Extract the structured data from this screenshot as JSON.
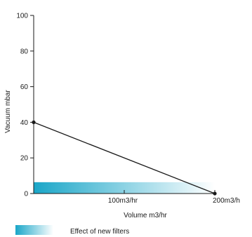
{
  "chart_data": {
    "type": "line",
    "xlabel": "Volume m3/hr",
    "ylabel": "Vacuum mbar",
    "xlim": [
      0,
      200
    ],
    "ylim": [
      0,
      100
    ],
    "y_ticks": [
      0,
      20,
      40,
      60,
      80,
      100
    ],
    "y_tick_labels": [
      "0",
      "20",
      "40",
      "60",
      "80",
      "100"
    ],
    "x_ticks": [
      100,
      200
    ],
    "x_tick_labels": [
      "100m3/hr",
      "200m3/h"
    ],
    "grid": false,
    "series": [
      {
        "x": [
          0,
          200
        ],
        "y": [
          40,
          0
        ]
      }
    ],
    "band": {
      "label": "Effect of new filters",
      "y_range": [
        0,
        4
      ],
      "x_range": [
        0,
        200
      ]
    },
    "legend": {
      "entries": [
        "Effect of new filters"
      ],
      "placement": "bottom-left"
    },
    "colors": {
      "line": "#1a1a1a",
      "band_start": "#1aa6c8",
      "band_end": "#ffffff",
      "axis": "#1a1a1a"
    }
  }
}
